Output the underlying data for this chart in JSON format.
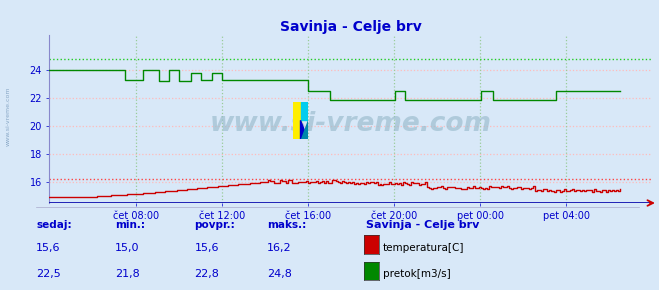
{
  "title": "Savinja - Celje brv",
  "title_color": "#0000cc",
  "bg_color": "#d8e8f8",
  "plot_bg_color": "#d8e8f8",
  "ylim": [
    14.5,
    26.5
  ],
  "yticks": [
    16,
    18,
    20,
    22,
    24
  ],
  "temp_color": "#cc0000",
  "flow_color": "#008800",
  "hline_temp_y": 16.2,
  "hline_flow_y": 24.8,
  "watermark": "www.si-vreme.com",
  "xtick_labels": [
    "čet 08:00",
    "čet 12:00",
    "čet 16:00",
    "čet 20:00",
    "pet 00:00",
    "pet 04:00"
  ],
  "xtick_positions": [
    8,
    16,
    24,
    32,
    40,
    48
  ],
  "xlim": [
    0,
    56
  ],
  "n_points": 288,
  "bottom": {
    "headers": [
      "sedaj:",
      "min.:",
      "povpr.:",
      "maks.:"
    ],
    "temp_values": [
      "15,6",
      "15,0",
      "15,6",
      "16,2"
    ],
    "flow_values": [
      "22,5",
      "21,8",
      "22,8",
      "24,8"
    ],
    "station": "Savinja - Celje brv",
    "legend": [
      [
        "temperatura[C]",
        "#cc0000"
      ],
      [
        "pretok[m3/s]",
        "#008800"
      ]
    ]
  }
}
